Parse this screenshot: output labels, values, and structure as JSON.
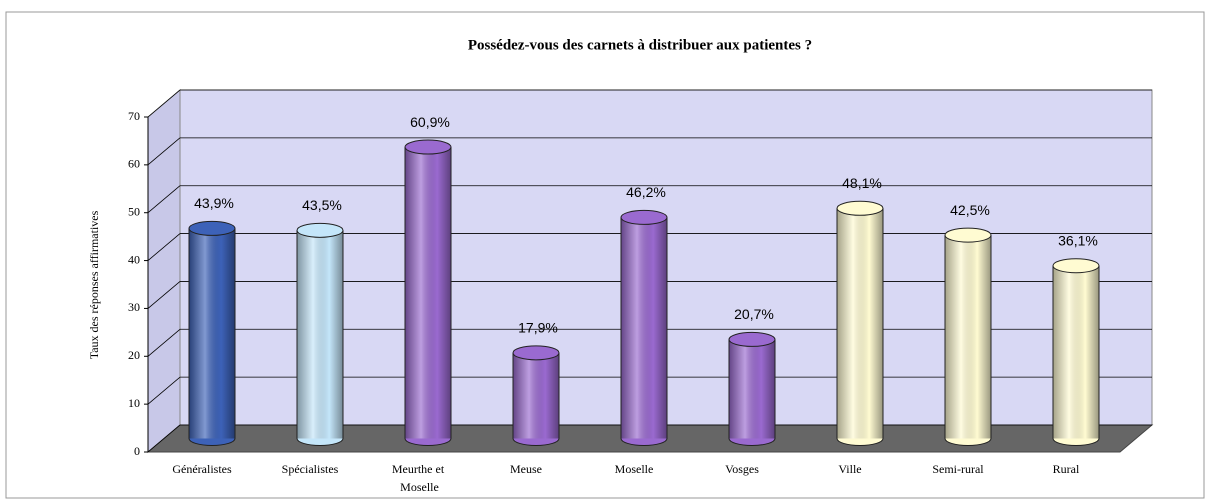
{
  "chart_data": {
    "type": "bar",
    "title": "Possédez-vous des carnets à distribuer aux patientes ?",
    "y_label": "Taux des réponses affirmatives",
    "categories": [
      "Généralistes",
      "Spécialistes",
      "Meurthe et Moselle",
      "Meuse",
      "Moselle",
      "Vosges",
      "Ville",
      "Semi-rural",
      "Rural"
    ],
    "values": [
      43.9,
      43.5,
      60.9,
      17.9,
      46.2,
      20.7,
      48.1,
      42.5,
      36.1
    ],
    "value_labels": [
      "43,9%",
      "43,5%",
      "60,9%",
      "17,9%",
      "46,2%",
      "20,7%",
      "48,1%",
      "42,5%",
      "36,1%"
    ],
    "colors": [
      "#3d62b8",
      "#c4e6fa",
      "#9a6ad0",
      "#9a6ad0",
      "#9a6ad0",
      "#9a6ad0",
      "#fffbd2",
      "#fffbd2",
      "#fffbd2"
    ],
    "ylim": [
      0,
      70
    ],
    "yticks": [
      0,
      10,
      20,
      30,
      40,
      50,
      60,
      70
    ],
    "grid": true
  }
}
